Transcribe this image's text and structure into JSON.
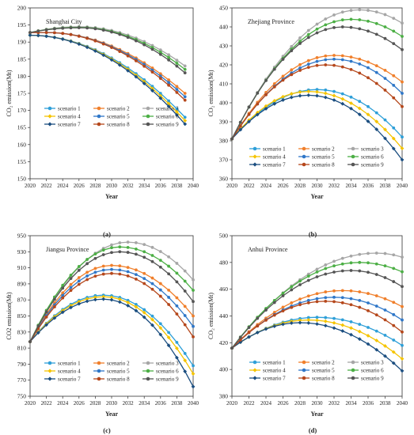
{
  "figure": {
    "panel_labels": [
      "(a)",
      "(b)",
      "(c)",
      "(d)"
    ]
  },
  "series_style": {
    "scenario 1": {
      "color": "#2E9FD8",
      "marker": "circle"
    },
    "scenario 2": {
      "color": "#F07F2B",
      "marker": "circle"
    },
    "scenario 3": {
      "color": "#A6A6A6",
      "marker": "circle"
    },
    "scenario 4": {
      "color": "#F5C400",
      "marker": "diamond"
    },
    "scenario 5": {
      "color": "#2F77C8",
      "marker": "circle"
    },
    "scenario 6": {
      "color": "#4CAF45",
      "marker": "circle"
    },
    "scenario 7": {
      "color": "#1B4E80",
      "marker": "diamond"
    },
    "scenario 8": {
      "color": "#B5471B",
      "marker": "circle"
    },
    "scenario 9": {
      "color": "#555555",
      "marker": "circle"
    }
  },
  "chart_data": [
    {
      "type": "line",
      "title": "Shanghai City",
      "xlabel": "Year",
      "ylabel": "CO₂ emission(Mt)",
      "xlim": [
        2020,
        2040
      ],
      "ylim": [
        150,
        200
      ],
      "xticks": [
        2020,
        2022,
        2024,
        2026,
        2028,
        2030,
        2032,
        2034,
        2036,
        2038,
        2040
      ],
      "yticks": [
        150,
        155,
        160,
        165,
        170,
        175,
        180,
        185,
        190,
        195,
        200
      ],
      "legend": "bottom-left",
      "grid": false,
      "series": [
        {
          "name": "scenario 1",
          "start": 2020,
          "end": 2039,
          "v0": 192.0,
          "peak": 192.0,
          "peak_year": 2020,
          "v_end": 168
        },
        {
          "name": "scenario 2",
          "start": 2020,
          "end": 2039,
          "v0": 192.8,
          "peak": 192.8,
          "peak_year": 2022,
          "v_end": 175
        },
        {
          "name": "scenario 3",
          "start": 2020,
          "end": 2039,
          "v0": 192.8,
          "peak": 194.5,
          "peak_year": 2026,
          "v_end": 183
        },
        {
          "name": "scenario 4",
          "start": 2020,
          "end": 2039,
          "v0": 192.0,
          "peak": 192.0,
          "peak_year": 2020,
          "v_end": 167
        },
        {
          "name": "scenario 5",
          "start": 2020,
          "end": 2039,
          "v0": 192.8,
          "peak": 192.8,
          "peak_year": 2022,
          "v_end": 174
        },
        {
          "name": "scenario 6",
          "start": 2020,
          "end": 2039,
          "v0": 192.8,
          "peak": 194.3,
          "peak_year": 2026,
          "v_end": 182
        },
        {
          "name": "scenario 7",
          "start": 2020,
          "end": 2039,
          "v0": 192.0,
          "peak": 192.0,
          "peak_year": 2020,
          "v_end": 166
        },
        {
          "name": "scenario 8",
          "start": 2020,
          "end": 2039,
          "v0": 192.8,
          "peak": 192.8,
          "peak_year": 2022,
          "v_end": 173
        },
        {
          "name": "scenario 9",
          "start": 2020,
          "end": 2039,
          "v0": 192.8,
          "peak": 194.2,
          "peak_year": 2026,
          "v_end": 181
        }
      ]
    },
    {
      "type": "line",
      "title": "Zhejiang Province",
      "xlabel": "Year",
      "ylabel": "CO₂ emission(Mt)",
      "xlim": [
        2020,
        2040
      ],
      "ylim": [
        360,
        450
      ],
      "xticks": [
        2020,
        2022,
        2024,
        2026,
        2028,
        2030,
        2032,
        2034,
        2036,
        2038,
        2040
      ],
      "yticks": [
        360,
        370,
        380,
        390,
        400,
        410,
        420,
        430,
        440,
        450
      ],
      "legend": "bottom-center",
      "grid": false,
      "series": [
        {
          "name": "scenario 1",
          "start": 2020,
          "end": 2040,
          "v0": 381,
          "peak": 407,
          "peak_year": 2030,
          "v_end": 382
        },
        {
          "name": "scenario 2",
          "start": 2020,
          "end": 2040,
          "v0": 381,
          "peak": 425,
          "peak_year": 2032,
          "v_end": 411
        },
        {
          "name": "scenario 3",
          "start": 2020,
          "end": 2040,
          "v0": 381,
          "peak": 449,
          "peak_year": 2035,
          "v_end": 442
        },
        {
          "name": "scenario 4",
          "start": 2020,
          "end": 2040,
          "v0": 381,
          "peak": 406,
          "peak_year": 2029,
          "v_end": 376
        },
        {
          "name": "scenario 5",
          "start": 2020,
          "end": 2040,
          "v0": 381,
          "peak": 423,
          "peak_year": 2032,
          "v_end": 405
        },
        {
          "name": "scenario 6",
          "start": 2020,
          "end": 2040,
          "v0": 381,
          "peak": 444,
          "peak_year": 2034,
          "v_end": 435
        },
        {
          "name": "scenario 7",
          "start": 2020,
          "end": 2040,
          "v0": 381,
          "peak": 404,
          "peak_year": 2029,
          "v_end": 370
        },
        {
          "name": "scenario 8",
          "start": 2020,
          "end": 2040,
          "v0": 381,
          "peak": 420,
          "peak_year": 2031,
          "v_end": 398
        },
        {
          "name": "scenario 9",
          "start": 2020,
          "end": 2040,
          "v0": 381,
          "peak": 440,
          "peak_year": 2033,
          "v_end": 428
        }
      ]
    },
    {
      "type": "line",
      "title": "Jiangsu Province",
      "xlabel": "Year",
      "ylabel": "CO2 emission(Mt)",
      "xlim": [
        2020,
        2040
      ],
      "ylim": [
        750,
        950
      ],
      "xticks": [
        2020,
        2022,
        2024,
        2026,
        2028,
        2030,
        2032,
        2034,
        2036,
        2038,
        2040
      ],
      "yticks": [
        750,
        770,
        790,
        810,
        830,
        850,
        870,
        890,
        910,
        930,
        950
      ],
      "legend": "bottom-center",
      "grid": false,
      "series": [
        {
          "name": "scenario 1",
          "start": 2020,
          "end": 2040,
          "v0": 818,
          "peak": 876,
          "peak_year": 2029,
          "v_end": 788
        },
        {
          "name": "scenario 2",
          "start": 2020,
          "end": 2040,
          "v0": 818,
          "peak": 913,
          "peak_year": 2030,
          "v_end": 850
        },
        {
          "name": "scenario 3",
          "start": 2020,
          "end": 2040,
          "v0": 818,
          "peak": 942,
          "peak_year": 2032,
          "v_end": 895
        },
        {
          "name": "scenario 4",
          "start": 2020,
          "end": 2040,
          "v0": 818,
          "peak": 874,
          "peak_year": 2029,
          "v_end": 778
        },
        {
          "name": "scenario 5",
          "start": 2020,
          "end": 2040,
          "v0": 818,
          "peak": 908,
          "peak_year": 2030,
          "v_end": 837
        },
        {
          "name": "scenario 6",
          "start": 2020,
          "end": 2040,
          "v0": 818,
          "peak": 936,
          "peak_year": 2031,
          "v_end": 882
        },
        {
          "name": "scenario 7",
          "start": 2020,
          "end": 2040,
          "v0": 818,
          "peak": 871,
          "peak_year": 2029,
          "v_end": 762
        },
        {
          "name": "scenario 8",
          "start": 2020,
          "end": 2040,
          "v0": 818,
          "peak": 903,
          "peak_year": 2030,
          "v_end": 824
        },
        {
          "name": "scenario 9",
          "start": 2020,
          "end": 2040,
          "v0": 818,
          "peak": 930,
          "peak_year": 2031,
          "v_end": 868
        }
      ]
    },
    {
      "type": "line",
      "title": "Anhui Province",
      "xlabel": "Year",
      "ylabel": "CO₂ emission(Mt)",
      "xlim": [
        2020,
        2040
      ],
      "ylim": [
        380,
        500
      ],
      "xticks": [
        2020,
        2022,
        2024,
        2026,
        2028,
        2030,
        2032,
        2034,
        2036,
        2038,
        2040
      ],
      "yticks": [
        380,
        400,
        420,
        440,
        460,
        480,
        500
      ],
      "legend": "bottom-center",
      "grid": false,
      "series": [
        {
          "name": "scenario 1",
          "start": 2020,
          "end": 2040,
          "v0": 416,
          "peak": 439,
          "peak_year": 2030,
          "v_end": 418
        },
        {
          "name": "scenario 2",
          "start": 2020,
          "end": 2040,
          "v0": 416,
          "peak": 459,
          "peak_year": 2033,
          "v_end": 447
        },
        {
          "name": "scenario 3",
          "start": 2020,
          "end": 2040,
          "v0": 416,
          "peak": 487,
          "peak_year": 2037,
          "v_end": 484
        },
        {
          "name": "scenario 4",
          "start": 2020,
          "end": 2040,
          "v0": 416,
          "peak": 437,
          "peak_year": 2029,
          "v_end": 408
        },
        {
          "name": "scenario 5",
          "start": 2020,
          "end": 2040,
          "v0": 416,
          "peak": 454,
          "peak_year": 2032,
          "v_end": 437
        },
        {
          "name": "scenario 6",
          "start": 2020,
          "end": 2040,
          "v0": 416,
          "peak": 480,
          "peak_year": 2035,
          "v_end": 473
        },
        {
          "name": "scenario 7",
          "start": 2020,
          "end": 2040,
          "v0": 416,
          "peak": 435,
          "peak_year": 2028,
          "v_end": 399
        },
        {
          "name": "scenario 8",
          "start": 2020,
          "end": 2040,
          "v0": 416,
          "peak": 451,
          "peak_year": 2031,
          "v_end": 428
        },
        {
          "name": "scenario 9",
          "start": 2020,
          "end": 2040,
          "v0": 416,
          "peak": 474,
          "peak_year": 2034,
          "v_end": 462
        }
      ]
    }
  ]
}
